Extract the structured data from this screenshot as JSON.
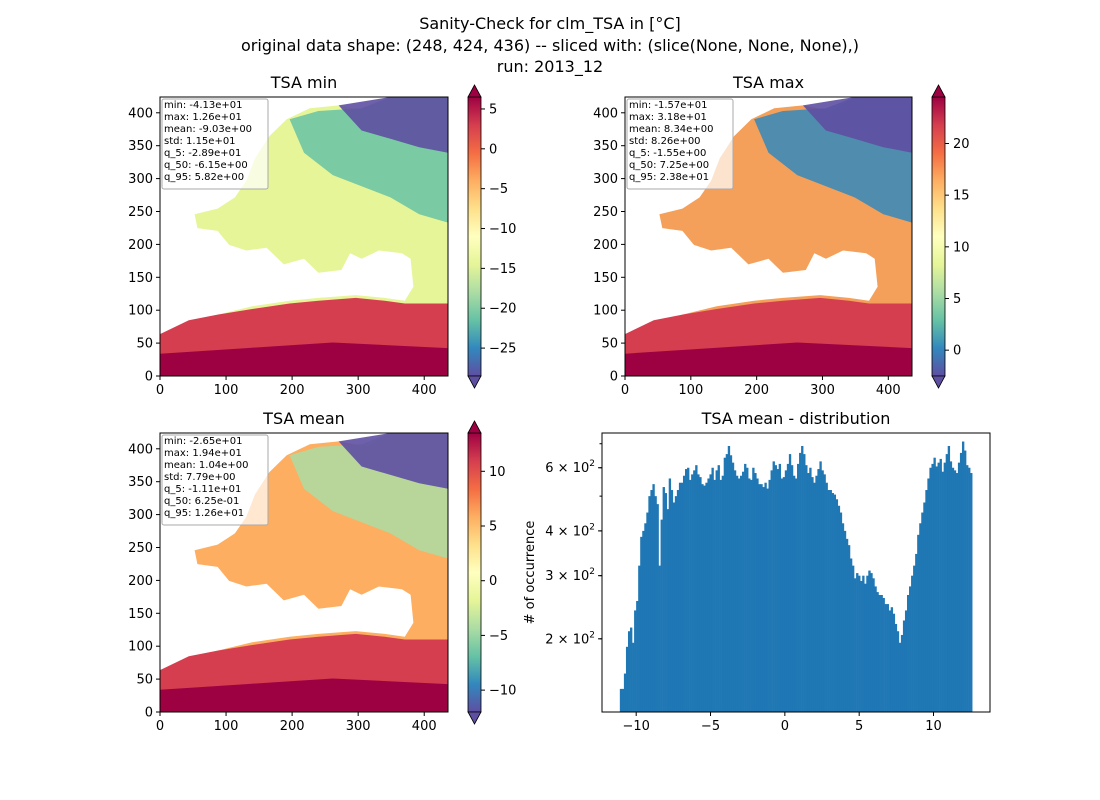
{
  "figure": {
    "title_line1": "Sanity-Check for clm_TSA in [°C]",
    "title_line2": "original data shape: (248, 424, 436) -- sliced with: (slice(None, None, None),)",
    "title_line3": "run: 2013_12"
  },
  "colors": {
    "histogram_bar": "#1f77b4",
    "colormap": [
      "#5e4fa2",
      "#3288bd",
      "#66c2a5",
      "#abdda4",
      "#e6f598",
      "#ffffbf",
      "#fee08b",
      "#fdae61",
      "#f46d43",
      "#d53e4f",
      "#9e0142"
    ]
  },
  "chart_data": [
    {
      "type": "heatmap",
      "title": "TSA min",
      "colormap": "Spectral_r",
      "xlim": [
        0,
        436
      ],
      "ylim": [
        0,
        424
      ],
      "xticks": [
        0,
        100,
        200,
        300,
        400
      ],
      "yticks": [
        0,
        50,
        100,
        150,
        200,
        250,
        300,
        350,
        400
      ],
      "colorbar": {
        "range": [
          -28.5,
          6.5
        ],
        "ticks": [
          5,
          0,
          -5,
          -10,
          -15,
          -20,
          -25
        ],
        "tick_labels": [
          "5",
          "0",
          "−5",
          "−10",
          "−15",
          "−20",
          "−25"
        ],
        "extend": "both"
      },
      "stats": [
        "min: -4.13e+01",
        "max: 1.26e+01",
        "mean: -9.03e+00",
        "std: 1.15e+01",
        "q_5: -2.89e+01",
        "q_50: -6.15e+00",
        "q_95: 5.82e+00"
      ]
    },
    {
      "type": "heatmap",
      "title": "TSA max",
      "colormap": "Spectral_r",
      "xlim": [
        0,
        436
      ],
      "ylim": [
        0,
        424
      ],
      "xticks": [
        0,
        100,
        200,
        300,
        400
      ],
      "yticks": [
        0,
        50,
        100,
        150,
        200,
        250,
        300,
        350,
        400
      ],
      "colorbar": {
        "range": [
          -2.5,
          24.5
        ],
        "ticks": [
          20,
          15,
          10,
          5,
          0
        ],
        "tick_labels": [
          "20",
          "15",
          "10",
          "5",
          "0"
        ],
        "extend": "both"
      },
      "stats": [
        "min: -1.57e+01",
        "max: 3.18e+01",
        "mean: 8.34e+00",
        "std: 8.26e+00",
        "q_5: -1.55e+00",
        "q_50: 7.25e+00",
        "q_95: 2.38e+01"
      ]
    },
    {
      "type": "heatmap",
      "title": "TSA mean",
      "colormap": "Spectral_r",
      "xlim": [
        0,
        436
      ],
      "ylim": [
        0,
        424
      ],
      "xticks": [
        0,
        100,
        200,
        300,
        400
      ],
      "yticks": [
        0,
        50,
        100,
        150,
        200,
        250,
        300,
        350,
        400
      ],
      "colorbar": {
        "range": [
          -12,
          13.5
        ],
        "ticks": [
          10,
          5,
          0,
          -5,
          -10
        ],
        "tick_labels": [
          "10",
          "5",
          "0",
          "−5",
          "−10"
        ],
        "extend": "both"
      },
      "stats": [
        "min: -2.65e+01",
        "max: 1.94e+01",
        "mean: 1.04e+00",
        "std: 7.79e+00",
        "q_5: -1.11e+01",
        "q_50: 6.25e-01",
        "q_95: 1.26e+01"
      ]
    },
    {
      "type": "bar",
      "title": "TSA mean - distribution",
      "ylabel": "# of occurrence",
      "xlabel": "",
      "yscale": "log",
      "xlim": [
        -12.3,
        13.8
      ],
      "ylim": [
        125,
        750
      ],
      "xticks": [
        -10,
        -5,
        0,
        5,
        10
      ],
      "xtick_labels": [
        "−10",
        "−5",
        "0",
        "5",
        "10"
      ],
      "yticks": [
        200,
        300,
        400,
        600
      ],
      "ytick_labels": [
        "2 × 10",
        "3 × 10",
        "4 × 10",
        "6 × 10"
      ],
      "ytick_exponent": "2",
      "bin_range": [
        -11.1,
        12.6
      ],
      "values": [
        145,
        145,
        160,
        190,
        210,
        215,
        195,
        240,
        255,
        320,
        385,
        400,
        420,
        450,
        500,
        520,
        540,
        500,
        475,
        320,
        430,
        530,
        510,
        460,
        560,
        520,
        480,
        500,
        520,
        545,
        545,
        570,
        595,
        600,
        555,
        575,
        590,
        610,
        575,
        565,
        540,
        535,
        545,
        560,
        575,
        600,
        555,
        590,
        610,
        555,
        570,
        640,
        655,
        690,
        650,
        620,
        590,
        570,
        560,
        570,
        585,
        615,
        600,
        560,
        555,
        600,
        580,
        560,
        540,
        540,
        530,
        545,
        525,
        555,
        590,
        625,
        610,
        595,
        615,
        560,
        565,
        590,
        615,
        655,
        610,
        570,
        560,
        615,
        660,
        690,
        655,
        610,
        580,
        600,
        565,
        545,
        570,
        595,
        625,
        590,
        575,
        545,
        520,
        520,
        510,
        505,
        490,
        470,
        450,
        420,
        400,
        380,
        365,
        335,
        320,
        295,
        305,
        300,
        290,
        300,
        285,
        300,
        310,
        305,
        295,
        280,
        270,
        265,
        265,
        260,
        250,
        250,
        240,
        245,
        235,
        220,
        210,
        195,
        205,
        225,
        240,
        265,
        280,
        300,
        320,
        345,
        390,
        420,
        450,
        480,
        520,
        560,
        600,
        615,
        640,
        605,
        620,
        635,
        585,
        620,
        655,
        690,
        625,
        600,
        590,
        580,
        620,
        660,
        710,
        670,
        610,
        600,
        580
      ]
    }
  ]
}
